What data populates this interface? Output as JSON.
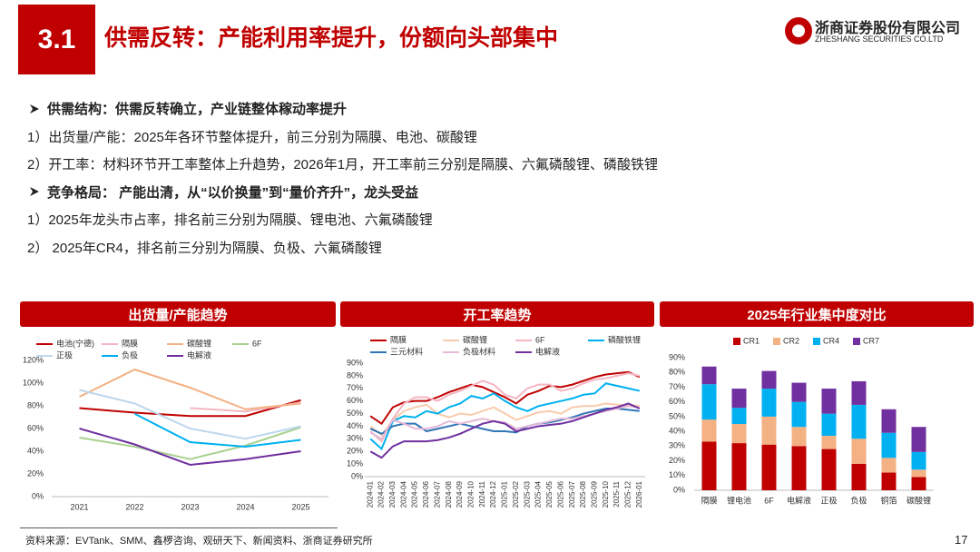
{
  "header": {
    "section": "3.1",
    "title": "供需反转：产能利用率提升，份额向头部集中",
    "logo_name": "浙商证券股份有限公司",
    "logo_en": "ZHESHANG SECURITIES CO.LTD"
  },
  "bullets": [
    {
      "text": "供需结构：供需反转确立，产业链整体稼动率提升",
      "bold": true
    },
    {
      "text": "1）出货量/产能：2025年各环节整体提升，前三分别为隔膜、电池、碳酸锂",
      "bold": false
    },
    {
      "text": "2）开工率：材料环节开工率整体上升趋势，2026年1月，开工率前三分别是隔膜、六氟磷酸锂、磷酸铁锂",
      "bold": false
    },
    {
      "text": "竞争格局： 产能出清，从“以价换量”到“量价齐升”，龙头受益",
      "bold": true
    },
    {
      "text": "1）2025年龙头市占率，排名前三分别为隔膜、锂电池、六氟磷酸锂",
      "bold": false
    },
    {
      "text": "2） 2025年CR4，排名前三分别为隔膜、负极、六氟磷酸锂",
      "bold": false
    }
  ],
  "chart_data": [
    {
      "type": "line",
      "title": "出货量/产能趋势",
      "categories": [
        "2021",
        "2022",
        "2023",
        "2024",
        "2025"
      ],
      "ylim": [
        0,
        120
      ],
      "yticks": [
        {
          "value": 0,
          "label": "0%"
        },
        {
          "value": 20,
          "label": "20%"
        },
        {
          "value": 40,
          "label": "40%"
        },
        {
          "value": 60,
          "label": "60%"
        },
        {
          "value": 80,
          "label": "80%"
        },
        {
          "value": 100,
          "label": "100%"
        },
        {
          "value": 120,
          "label": "120%"
        }
      ],
      "grid": false,
      "series": [
        {
          "name": "电池(宁德)",
          "color": "#c00000",
          "values": [
            78,
            74,
            71,
            71,
            85
          ]
        },
        {
          "name": "隔膜",
          "color": "#f4b6c2",
          "values": [
            null,
            null,
            78,
            75,
            83
          ]
        },
        {
          "name": "碳酸锂",
          "color": "#f4b183",
          "values": [
            88,
            112,
            96,
            77,
            82
          ]
        },
        {
          "name": "6F",
          "color": "#a9d18e",
          "values": [
            52,
            44,
            33,
            45,
            61
          ]
        },
        {
          "name": "正极",
          "color": "#bdd7ee",
          "values": [
            94,
            82,
            60,
            51,
            62
          ]
        },
        {
          "name": "负极",
          "color": "#00b0f0",
          "values": [
            null,
            73,
            48,
            44,
            50
          ]
        },
        {
          "name": "电解液",
          "color": "#7030a0",
          "values": [
            60,
            46,
            28,
            33,
            40
          ]
        }
      ]
    },
    {
      "type": "line",
      "title": "开工率趋势",
      "categories": [
        "2024-01",
        "2024-02",
        "2024-03",
        "2024-04",
        "2024-05",
        "2024-06",
        "2024-07",
        "2024-08",
        "2024-09",
        "2024-10",
        "2024-11",
        "2024-12",
        "2025-01",
        "2025-02",
        "2025-03",
        "2025-04",
        "2025-05",
        "2025-06",
        "2025-07",
        "2025-08",
        "2025-09",
        "2025-10",
        "2025-11",
        "2025-12",
        "2026-01"
      ],
      "ylim": [
        0,
        90
      ],
      "yticks": [
        {
          "value": 0,
          "label": "0%"
        },
        {
          "value": 10,
          "label": "10%"
        },
        {
          "value": 20,
          "label": "20%"
        },
        {
          "value": 30,
          "label": "30%"
        },
        {
          "value": 40,
          "label": "40%"
        },
        {
          "value": 50,
          "label": "50%"
        },
        {
          "value": 60,
          "label": "60%"
        },
        {
          "value": 70,
          "label": "70%"
        },
        {
          "value": 80,
          "label": "80%"
        },
        {
          "value": 90,
          "label": "90%"
        }
      ],
      "grid": false,
      "series": [
        {
          "name": "隔膜",
          "color": "#c00000",
          "values": [
            48,
            42,
            55,
            59,
            60,
            60,
            63,
            67,
            70,
            73,
            71,
            67,
            63,
            58,
            65,
            68,
            72,
            71,
            73,
            76,
            79,
            81,
            82,
            83,
            79
          ]
        },
        {
          "name": "碳酸锂",
          "color": "#f8cbad",
          "values": [
            40,
            33,
            45,
            52,
            55,
            57,
            50,
            47,
            50,
            49,
            52,
            55,
            50,
            45,
            48,
            51,
            52,
            50,
            55,
            56,
            56,
            58,
            57,
            57,
            56
          ]
        },
        {
          "name": "6F",
          "color": "#f4b6c2",
          "values": [
            36,
            28,
            46,
            58,
            63,
            63,
            60,
            65,
            68,
            72,
            76,
            73,
            65,
            62,
            70,
            73,
            73,
            68,
            70,
            74,
            77,
            78,
            80,
            82,
            80
          ]
        },
        {
          "name": "磷酸铁锂",
          "color": "#00b0f0",
          "values": [
            30,
            22,
            44,
            48,
            47,
            52,
            50,
            55,
            58,
            64,
            62,
            66,
            60,
            55,
            52,
            56,
            58,
            60,
            62,
            65,
            66,
            74,
            72,
            70,
            68
          ]
        },
        {
          "name": "三元材料",
          "color": "#2f75b5",
          "values": [
            38,
            34,
            40,
            42,
            42,
            36,
            38,
            40,
            42,
            40,
            38,
            36,
            36,
            35,
            40,
            42,
            43,
            45,
            47,
            50,
            52,
            54,
            54,
            53,
            52
          ]
        },
        {
          "name": "负极材料",
          "color": "#e6b9d8",
          "values": [
            35,
            30,
            45,
            42,
            38,
            38,
            40,
            44,
            42,
            44,
            46,
            44,
            43,
            38,
            40,
            42,
            44,
            46,
            46,
            48,
            50,
            52,
            54,
            56,
            55
          ]
        },
        {
          "name": "电解液",
          "color": "#7030a0",
          "values": [
            20,
            15,
            24,
            28,
            28,
            28,
            29,
            31,
            34,
            38,
            42,
            44,
            42,
            36,
            38,
            40,
            41,
            42,
            44,
            47,
            50,
            53,
            55,
            58,
            54
          ]
        }
      ]
    },
    {
      "type": "stacked_bar",
      "title": "2025年行业集中度对比",
      "categories": [
        "隔膜",
        "锂电池",
        "6F",
        "电解液",
        "正极",
        "负极",
        "铜箔",
        "碳酸锂"
      ],
      "ylim": [
        0,
        90
      ],
      "yticks": [
        {
          "value": 0,
          "label": "0%"
        },
        {
          "value": 10,
          "label": "10%"
        },
        {
          "value": 20,
          "label": "20%"
        },
        {
          "value": 30,
          "label": "30%"
        },
        {
          "value": 40,
          "label": "40%"
        },
        {
          "value": 50,
          "label": "50%"
        },
        {
          "value": 60,
          "label": "60%"
        },
        {
          "value": 70,
          "label": "70%"
        },
        {
          "value": 80,
          "label": "80%"
        },
        {
          "value": 90,
          "label": "90%"
        }
      ],
      "grid": false,
      "series": [
        {
          "name": "CR1",
          "color": "#c00000",
          "values": [
            33,
            32,
            31,
            30,
            28,
            18,
            12,
            9
          ]
        },
        {
          "name": "CR2",
          "color": "#f4b183",
          "values": [
            15,
            13,
            19,
            13,
            9,
            17,
            10,
            5
          ]
        },
        {
          "name": "CR4",
          "color": "#00b0f0",
          "values": [
            24,
            11,
            19,
            17,
            15,
            23,
            17,
            12
          ]
        },
        {
          "name": "CR7",
          "color": "#7030a0",
          "values": [
            12,
            13,
            12,
            13,
            17,
            16,
            16,
            17
          ]
        }
      ]
    }
  ],
  "source": "资料来源：EVTank、SMM、鑫椤咨询、观研天下、新闻资料、浙商证券研究所",
  "page": "17"
}
